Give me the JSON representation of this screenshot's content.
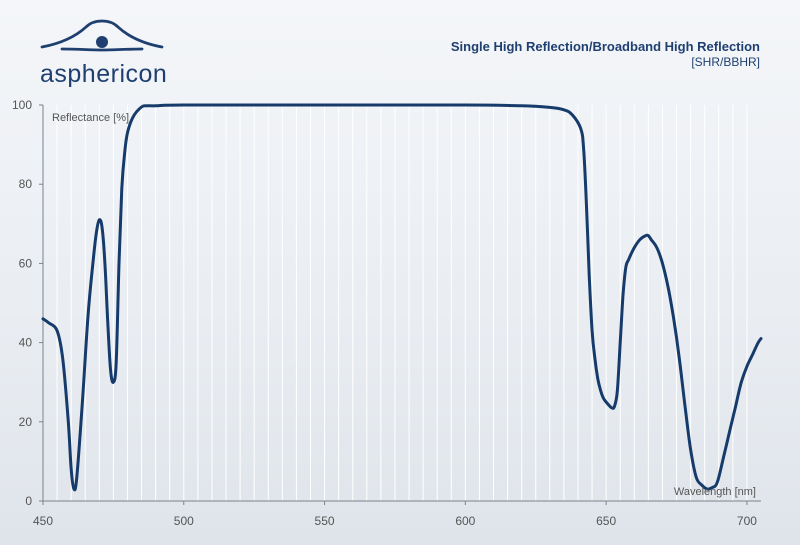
{
  "brand": {
    "name": "asphericon"
  },
  "chart_data": {
    "type": "line",
    "title": "Single High Reflection/Broadband High Reflection",
    "subtitle": "[SHR/BBHR]",
    "xlabel": "Wavelength [nm]",
    "ylabel": "Reflectance [%]",
    "xlim": [
      450,
      705
    ],
    "ylim": [
      0,
      100
    ],
    "xticks": [
      450,
      500,
      550,
      600,
      650,
      700
    ],
    "yticks": [
      0,
      20,
      40,
      60,
      80,
      100
    ],
    "grid": "vertical",
    "colors": {
      "line": "#163b6b",
      "grid": "#ffffff",
      "axis": "#7a828c",
      "text": "#555555"
    },
    "series": [
      {
        "x": [
          450,
          452,
          455,
          457,
          459,
          460,
          461,
          462,
          464,
          466,
          468,
          469,
          470,
          471,
          472,
          473,
          474,
          475,
          476,
          477,
          478,
          479,
          480,
          482,
          485,
          487,
          490,
          500,
          550,
          600,
          620,
          630,
          635,
          638,
          641,
          642,
          643,
          644,
          645,
          646,
          647,
          648,
          649,
          650,
          652,
          653,
          654,
          655,
          656,
          657,
          658,
          660,
          662,
          664,
          665,
          666,
          668,
          670,
          672,
          674,
          676,
          678,
          680,
          682,
          684,
          686,
          688,
          689,
          690,
          692,
          694,
          696,
          698,
          700,
          702,
          704,
          705
        ],
        "y": [
          46,
          45,
          43,
          36,
          20,
          8,
          3,
          6,
          25,
          47,
          62,
          68,
          71,
          69,
          60,
          45,
          33,
          30,
          35,
          60,
          79,
          88,
          93,
          97,
          99.5,
          99.8,
          99.8,
          100,
          100,
          100,
          99.8,
          99.4,
          98.8,
          97.5,
          94,
          89,
          75,
          57,
          43,
          36,
          31,
          28,
          26,
          25,
          23.5,
          24,
          28,
          40,
          52,
          59,
          61,
          64,
          66,
          67,
          67,
          66,
          64,
          60,
          54,
          46,
          36,
          24,
          13,
          6,
          4,
          3,
          3.5,
          4,
          6,
          12,
          18,
          24,
          30,
          34,
          37,
          40,
          41
        ]
      }
    ]
  }
}
